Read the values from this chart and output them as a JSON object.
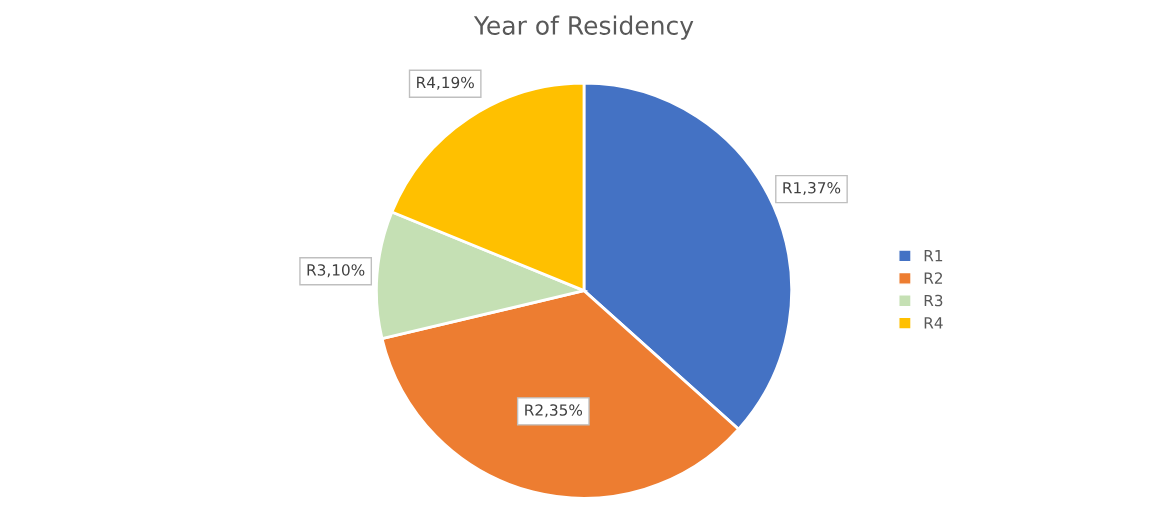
{
  "chart_data": {
    "type": "pie",
    "title": "Year of Residency",
    "categories": [
      "R1",
      "R2",
      "R3",
      "R4"
    ],
    "values": [
      37,
      35,
      10,
      19
    ],
    "colors": [
      "#4472c4",
      "#ed7d31",
      "#c5e0b4",
      "#ffc000"
    ],
    "value_labels": [
      "R1,37%",
      "R2,35%",
      "R3,10%",
      "R4,19%"
    ],
    "legend": "right"
  }
}
